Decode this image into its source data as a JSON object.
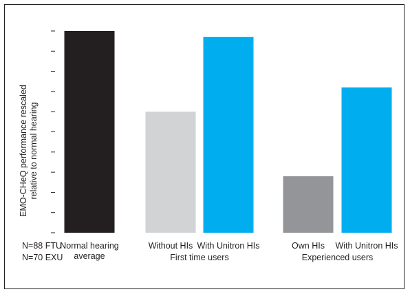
{
  "chart_data": {
    "type": "bar",
    "ylabel": [
      "EMO-CHeQ performance rescaled",
      "relative to normal hearing"
    ],
    "ylim": [
      0,
      10
    ],
    "grid": false,
    "legend": "none",
    "notes": [
      "N=88 FTU",
      "N=70 EXU"
    ],
    "categories": [
      "Normal hearing average",
      "Without HIs",
      "With Unitron HIs",
      "Own HIs",
      "With Unitron HIs"
    ],
    "category_labels": [
      [
        "Normal hearing",
        "average"
      ],
      [
        "Without HIs"
      ],
      [
        "With Unitron HIs"
      ],
      [
        "Own HIs"
      ],
      [
        "With Unitron HIs"
      ]
    ],
    "groups": [
      {
        "label": "",
        "categories": [
          0
        ]
      },
      {
        "label": "First time users",
        "categories": [
          1,
          2
        ]
      },
      {
        "label": "Experienced users",
        "categories": [
          3,
          4
        ]
      }
    ],
    "values": [
      10,
      6,
      9.7,
      2.8,
      7.2
    ],
    "colors": [
      "#231f20",
      "#d1d3d4",
      "#00aeef",
      "#939598",
      "#00aeef"
    ]
  }
}
